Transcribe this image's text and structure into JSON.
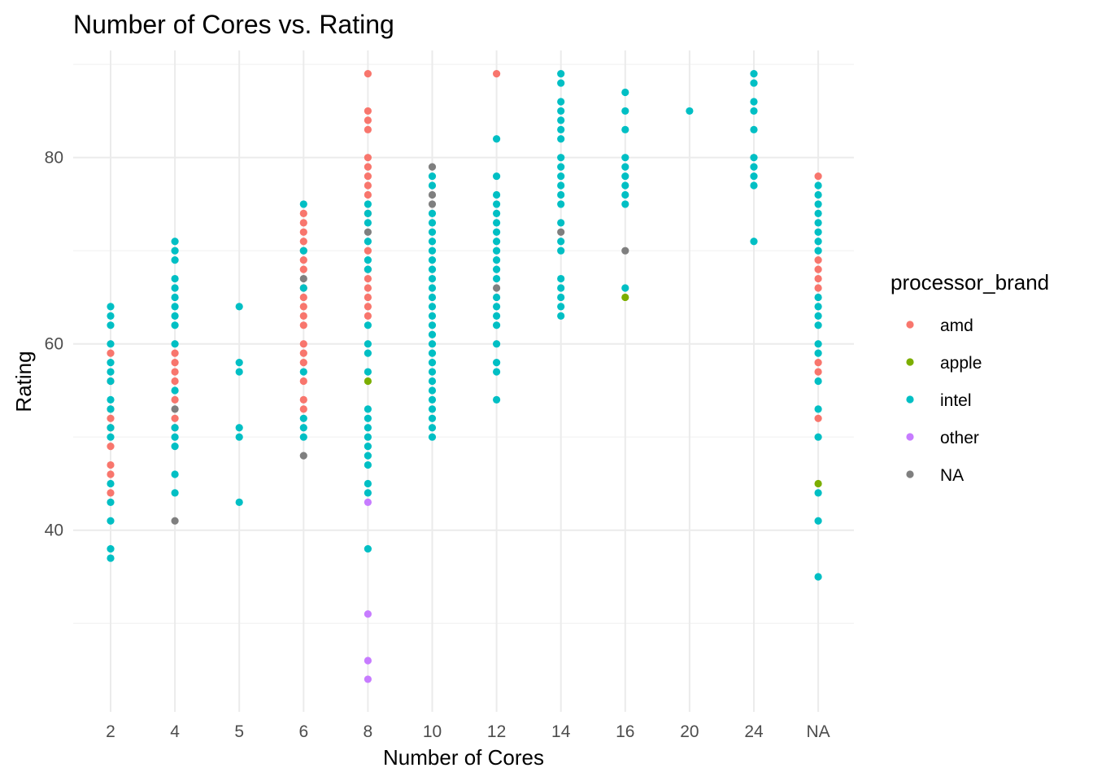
{
  "chart_data": {
    "type": "scatter",
    "title": "Number of Cores vs. Rating",
    "xlabel": "Number of Cores",
    "ylabel": "Rating",
    "categories": [
      "2",
      "4",
      "5",
      "6",
      "8",
      "10",
      "12",
      "14",
      "16",
      "20",
      "24",
      "NA"
    ],
    "ylim": [
      20.5,
      91.5
    ],
    "y_ticks": [
      40,
      60,
      80
    ],
    "grid": true,
    "legend": {
      "title": "processor_brand",
      "placement": "right",
      "entries": [
        "amd",
        "apple",
        "intel",
        "other",
        "NA"
      ]
    },
    "colors": {
      "amd": "#F8766D",
      "apple": "#7CAE00",
      "intel": "#00BFC4",
      "other": "#C77CFF",
      "NA": "#7F7F7F"
    },
    "series": [
      {
        "name": "amd",
        "points": [
          [
            "2",
            59
          ],
          [
            "2",
            56
          ],
          [
            "2",
            53
          ],
          [
            "2",
            52
          ],
          [
            "2",
            51
          ],
          [
            "2",
            49
          ],
          [
            "2",
            47
          ],
          [
            "2",
            46
          ],
          [
            "2",
            44
          ],
          [
            "4",
            59
          ],
          [
            "4",
            58
          ],
          [
            "4",
            57
          ],
          [
            "4",
            56
          ],
          [
            "4",
            54
          ],
          [
            "4",
            52
          ],
          [
            "4",
            51
          ],
          [
            "6",
            74
          ],
          [
            "6",
            73
          ],
          [
            "6",
            72
          ],
          [
            "6",
            71
          ],
          [
            "6",
            70
          ],
          [
            "6",
            69
          ],
          [
            "6",
            68
          ],
          [
            "6",
            66
          ],
          [
            "6",
            65
          ],
          [
            "6",
            64
          ],
          [
            "6",
            63
          ],
          [
            "6",
            62
          ],
          [
            "6",
            60
          ],
          [
            "6",
            59
          ],
          [
            "6",
            58
          ],
          [
            "6",
            56
          ],
          [
            "6",
            54
          ],
          [
            "6",
            53
          ],
          [
            "8",
            89
          ],
          [
            "8",
            85
          ],
          [
            "8",
            84
          ],
          [
            "8",
            83
          ],
          [
            "8",
            80
          ],
          [
            "8",
            79
          ],
          [
            "8",
            78
          ],
          [
            "8",
            77
          ],
          [
            "8",
            76
          ],
          [
            "8",
            74
          ],
          [
            "8",
            70
          ],
          [
            "8",
            68
          ],
          [
            "8",
            67
          ],
          [
            "8",
            66
          ],
          [
            "8",
            65
          ],
          [
            "8",
            64
          ],
          [
            "8",
            63
          ],
          [
            "12",
            89
          ],
          [
            "NA",
            78
          ],
          [
            "NA",
            69
          ],
          [
            "NA",
            68
          ],
          [
            "NA",
            67
          ],
          [
            "NA",
            66
          ],
          [
            "NA",
            58
          ],
          [
            "NA",
            57
          ],
          [
            "NA",
            52
          ]
        ]
      },
      {
        "name": "apple",
        "points": [
          [
            "8",
            56
          ],
          [
            "16",
            65
          ],
          [
            "NA",
            45
          ]
        ]
      },
      {
        "name": "intel",
        "points": [
          [
            "2",
            64
          ],
          [
            "2",
            63
          ],
          [
            "2",
            62
          ],
          [
            "2",
            60
          ],
          [
            "2",
            58
          ],
          [
            "2",
            57
          ],
          [
            "2",
            56
          ],
          [
            "2",
            54
          ],
          [
            "2",
            53
          ],
          [
            "2",
            51
          ],
          [
            "2",
            50
          ],
          [
            "2",
            45
          ],
          [
            "2",
            43
          ],
          [
            "2",
            41
          ],
          [
            "2",
            38
          ],
          [
            "2",
            37
          ],
          [
            "4",
            71
          ],
          [
            "4",
            70
          ],
          [
            "4",
            69
          ],
          [
            "4",
            67
          ],
          [
            "4",
            66
          ],
          [
            "4",
            65
          ],
          [
            "4",
            64
          ],
          [
            "4",
            63
          ],
          [
            "4",
            62
          ],
          [
            "4",
            60
          ],
          [
            "4",
            55
          ],
          [
            "4",
            51
          ],
          [
            "4",
            50
          ],
          [
            "4",
            49
          ],
          [
            "4",
            46
          ],
          [
            "4",
            44
          ],
          [
            "5",
            64
          ],
          [
            "5",
            58
          ],
          [
            "5",
            57
          ],
          [
            "5",
            51
          ],
          [
            "5",
            50
          ],
          [
            "5",
            43
          ],
          [
            "6",
            75
          ],
          [
            "6",
            70
          ],
          [
            "6",
            66
          ],
          [
            "6",
            57
          ],
          [
            "6",
            52
          ],
          [
            "6",
            51
          ],
          [
            "6",
            50
          ],
          [
            "8",
            75
          ],
          [
            "8",
            74
          ],
          [
            "8",
            73
          ],
          [
            "8",
            71
          ],
          [
            "8",
            69
          ],
          [
            "8",
            68
          ],
          [
            "8",
            62
          ],
          [
            "8",
            60
          ],
          [
            "8",
            59
          ],
          [
            "8",
            57
          ],
          [
            "8",
            53
          ],
          [
            "8",
            52
          ],
          [
            "8",
            51
          ],
          [
            "8",
            50
          ],
          [
            "8",
            49
          ],
          [
            "8",
            48
          ],
          [
            "8",
            47
          ],
          [
            "8",
            45
          ],
          [
            "8",
            44
          ],
          [
            "8",
            38
          ],
          [
            "10",
            78
          ],
          [
            "10",
            77
          ],
          [
            "10",
            74
          ],
          [
            "10",
            73
          ],
          [
            "10",
            72
          ],
          [
            "10",
            71
          ],
          [
            "10",
            70
          ],
          [
            "10",
            69
          ],
          [
            "10",
            68
          ],
          [
            "10",
            67
          ],
          [
            "10",
            66
          ],
          [
            "10",
            65
          ],
          [
            "10",
            64
          ],
          [
            "10",
            63
          ],
          [
            "10",
            62
          ],
          [
            "10",
            61
          ],
          [
            "10",
            60
          ],
          [
            "10",
            59
          ],
          [
            "10",
            58
          ],
          [
            "10",
            57
          ],
          [
            "10",
            56
          ],
          [
            "10",
            55
          ],
          [
            "10",
            54
          ],
          [
            "10",
            53
          ],
          [
            "10",
            52
          ],
          [
            "10",
            51
          ],
          [
            "10",
            50
          ],
          [
            "12",
            82
          ],
          [
            "12",
            78
          ],
          [
            "12",
            76
          ],
          [
            "12",
            75
          ],
          [
            "12",
            74
          ],
          [
            "12",
            73
          ],
          [
            "12",
            72
          ],
          [
            "12",
            71
          ],
          [
            "12",
            70
          ],
          [
            "12",
            69
          ],
          [
            "12",
            68
          ],
          [
            "12",
            67
          ],
          [
            "12",
            65
          ],
          [
            "12",
            64
          ],
          [
            "12",
            63
          ],
          [
            "12",
            62
          ],
          [
            "12",
            60
          ],
          [
            "12",
            58
          ],
          [
            "12",
            57
          ],
          [
            "12",
            54
          ],
          [
            "14",
            89
          ],
          [
            "14",
            88
          ],
          [
            "14",
            86
          ],
          [
            "14",
            85
          ],
          [
            "14",
            84
          ],
          [
            "14",
            83
          ],
          [
            "14",
            82
          ],
          [
            "14",
            80
          ],
          [
            "14",
            79
          ],
          [
            "14",
            78
          ],
          [
            "14",
            77
          ],
          [
            "14",
            76
          ],
          [
            "14",
            75
          ],
          [
            "14",
            73
          ],
          [
            "14",
            71
          ],
          [
            "14",
            70
          ],
          [
            "14",
            67
          ],
          [
            "14",
            66
          ],
          [
            "14",
            65
          ],
          [
            "14",
            64
          ],
          [
            "14",
            63
          ],
          [
            "16",
            87
          ],
          [
            "16",
            85
          ],
          [
            "16",
            83
          ],
          [
            "16",
            80
          ],
          [
            "16",
            79
          ],
          [
            "16",
            78
          ],
          [
            "16",
            77
          ],
          [
            "16",
            76
          ],
          [
            "16",
            75
          ],
          [
            "16",
            66
          ],
          [
            "20",
            85
          ],
          [
            "24",
            89
          ],
          [
            "24",
            88
          ],
          [
            "24",
            86
          ],
          [
            "24",
            85
          ],
          [
            "24",
            83
          ],
          [
            "24",
            80
          ],
          [
            "24",
            79
          ],
          [
            "24",
            78
          ],
          [
            "24",
            77
          ],
          [
            "24",
            71
          ],
          [
            "NA",
            77
          ],
          [
            "NA",
            76
          ],
          [
            "NA",
            75
          ],
          [
            "NA",
            74
          ],
          [
            "NA",
            73
          ],
          [
            "NA",
            72
          ],
          [
            "NA",
            71
          ],
          [
            "NA",
            70
          ],
          [
            "NA",
            65
          ],
          [
            "NA",
            64
          ],
          [
            "NA",
            63
          ],
          [
            "NA",
            62
          ],
          [
            "NA",
            60
          ],
          [
            "NA",
            59
          ],
          [
            "NA",
            56
          ],
          [
            "NA",
            53
          ],
          [
            "NA",
            50
          ],
          [
            "NA",
            44
          ],
          [
            "NA",
            41
          ],
          [
            "NA",
            35
          ]
        ]
      },
      {
        "name": "other",
        "points": [
          [
            "8",
            43
          ],
          [
            "8",
            31
          ],
          [
            "8",
            26
          ],
          [
            "8",
            24
          ]
        ]
      },
      {
        "name": "NA",
        "points": [
          [
            "4",
            53
          ],
          [
            "4",
            41
          ],
          [
            "6",
            67
          ],
          [
            "6",
            48
          ],
          [
            "8",
            72
          ],
          [
            "10",
            79
          ],
          [
            "10",
            76
          ],
          [
            "10",
            75
          ],
          [
            "12",
            66
          ],
          [
            "14",
            72
          ],
          [
            "16",
            70
          ]
        ]
      }
    ]
  }
}
